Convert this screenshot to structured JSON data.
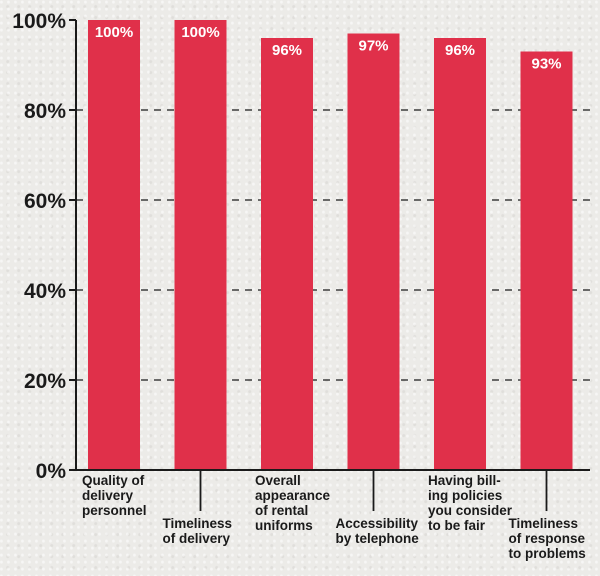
{
  "chart_data": {
    "type": "bar",
    "categories": [
      [
        "Quality of",
        "delivery",
        "personnel"
      ],
      [
        "Timeliness",
        "of delivery"
      ],
      [
        "Overall",
        "appearance",
        "of rental",
        "uniforms"
      ],
      [
        "Accessibility",
        "by telephone"
      ],
      [
        "Having bill-",
        "ing policies",
        "you consider",
        "to be fair"
      ],
      [
        "Timeliness",
        "of response",
        "to problems"
      ]
    ],
    "values": [
      100,
      100,
      96,
      97,
      96,
      93
    ],
    "value_labels": [
      "100%",
      "100%",
      "96%",
      "97%",
      "96%",
      "93%"
    ],
    "yticks": [
      0,
      20,
      40,
      60,
      80,
      100
    ],
    "ytick_labels": [
      "0%",
      "20%",
      "40%",
      "60%",
      "80%",
      "100%"
    ],
    "ylim": [
      0,
      100
    ],
    "grid": "dashed horizontal",
    "label_positions": [
      "high",
      "low",
      "high",
      "low",
      "high",
      "low"
    ],
    "colors": {
      "bar": "#e0304a",
      "axis": "#1a1a1a",
      "label_text": "#ffffff"
    }
  }
}
